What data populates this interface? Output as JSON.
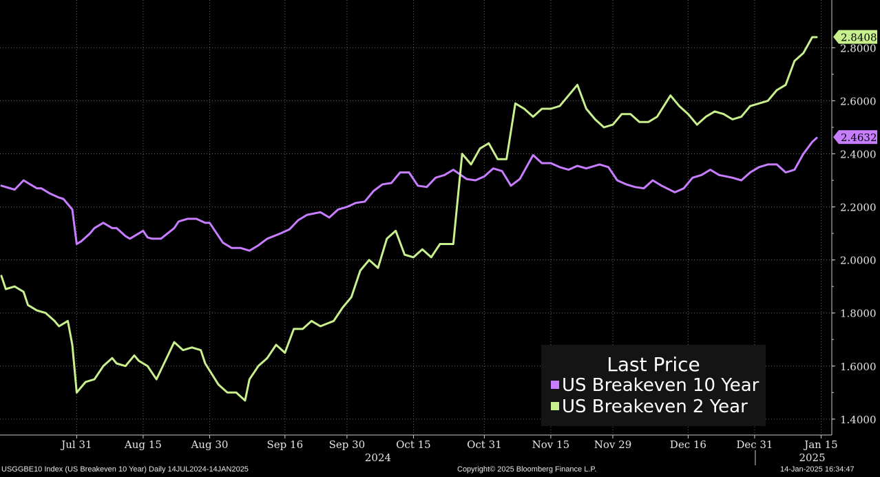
{
  "footer": {
    "left": "USGGBE10 Index (US Breakeven 10 Year)  Daily 14JUL2024-14JAN2025",
    "center": "Copyright© 2025 Bloomberg Finance L.P.",
    "right": "14-Jan-2025 16:34:47"
  },
  "legend": {
    "title": "Last Price",
    "items": [
      {
        "label": "US Breakeven 10 Year",
        "color": "#c77dff"
      },
      {
        "label": "US Breakeven 2 Year",
        "color": "#c8f08c"
      }
    ]
  },
  "colors": {
    "background": "#000000",
    "grid": "#6a6a6a",
    "axis": "#cfcfcf"
  },
  "chart_data": {
    "type": "line",
    "title": "",
    "x_range": [
      "2024-07-14",
      "2025-01-14"
    ],
    "y_range": [
      1.34,
      2.98
    ],
    "yticks": [
      "1.4000",
      "1.6000",
      "1.8000",
      "2.0000",
      "2.2000",
      "2.4000",
      "2.6000",
      "2.8000"
    ],
    "xticks": [
      {
        "date": "2024-07-31",
        "label": "Jul 31"
      },
      {
        "date": "2024-08-15",
        "label": "Aug 15"
      },
      {
        "date": "2024-08-30",
        "label": "Aug 30"
      },
      {
        "date": "2024-09-16",
        "label": "Sep 16"
      },
      {
        "date": "2024-09-30",
        "label": "Sep 30"
      },
      {
        "date": "2024-10-15",
        "label": "Oct 15"
      },
      {
        "date": "2024-10-31",
        "label": "Oct 31"
      },
      {
        "date": "2024-11-15",
        "label": "Nov 15"
      },
      {
        "date": "2024-11-29",
        "label": "Nov 29"
      },
      {
        "date": "2024-12-16",
        "label": "Dec 16"
      },
      {
        "date": "2024-12-31",
        "label": "Dec 31"
      },
      {
        "date": "2025-01-15",
        "label": "Jan 15"
      }
    ],
    "year_labels": [
      {
        "date": "2024-10-07",
        "label": "2024"
      },
      {
        "date": "2025-01-13",
        "label": "2025"
      }
    ],
    "year_divider": "2024-12-31",
    "grid": true,
    "legend_position": "bottom-right",
    "series": [
      {
        "name": "US Breakeven 10 Year",
        "color": "#c77dff",
        "last_value": "2.4632",
        "x": [
          "2024-07-14",
          "2024-07-17",
          "2024-07-19",
          "2024-07-20",
          "2024-07-22",
          "2024-07-23",
          "2024-07-25",
          "2024-07-27",
          "2024-07-28",
          "2024-07-30",
          "2024-07-31",
          "2024-08-01",
          "2024-08-03",
          "2024-08-04",
          "2024-08-06",
          "2024-08-08",
          "2024-08-09",
          "2024-08-11",
          "2024-08-12",
          "2024-08-15",
          "2024-08-16",
          "2024-08-17",
          "2024-08-19",
          "2024-08-22",
          "2024-08-23",
          "2024-08-25",
          "2024-08-27",
          "2024-08-29",
          "2024-08-30",
          "2024-09-02",
          "2024-09-04",
          "2024-09-06",
          "2024-09-08",
          "2024-09-10",
          "2024-09-12",
          "2024-09-15",
          "2024-09-17",
          "2024-09-19",
          "2024-09-21",
          "2024-09-24",
          "2024-09-26",
          "2024-09-28",
          "2024-09-30",
          "2024-10-02",
          "2024-10-04",
          "2024-10-06",
          "2024-10-08",
          "2024-10-10",
          "2024-10-12",
          "2024-10-14",
          "2024-10-16",
          "2024-10-18",
          "2024-10-20",
          "2024-10-22",
          "2024-10-24",
          "2024-10-27",
          "2024-10-29",
          "2024-10-31",
          "2024-11-02",
          "2024-11-04",
          "2024-11-06",
          "2024-11-08",
          "2024-11-11",
          "2024-11-13",
          "2024-11-15",
          "2024-11-17",
          "2024-11-19",
          "2024-11-21",
          "2024-11-23",
          "2024-11-26",
          "2024-11-28",
          "2024-11-30",
          "2024-12-02",
          "2024-12-04",
          "2024-12-06",
          "2024-12-08",
          "2024-12-10",
          "2024-12-13",
          "2024-12-15",
          "2024-12-17",
          "2024-12-19",
          "2024-12-21",
          "2024-12-23",
          "2024-12-26",
          "2024-12-28",
          "2024-12-30",
          "2025-01-01",
          "2025-01-03",
          "2025-01-05",
          "2025-01-07",
          "2025-01-09",
          "2025-01-11",
          "2025-01-13",
          "2025-01-14"
        ],
        "values": [
          2.28,
          2.265,
          2.3,
          2.29,
          2.27,
          2.27,
          2.25,
          2.235,
          2.23,
          2.19,
          2.06,
          2.07,
          2.1,
          2.12,
          2.14,
          2.12,
          2.12,
          2.09,
          2.08,
          2.11,
          2.085,
          2.08,
          2.08,
          2.12,
          2.145,
          2.155,
          2.155,
          2.14,
          2.14,
          2.065,
          2.045,
          2.045,
          2.035,
          2.055,
          2.08,
          2.1,
          2.115,
          2.15,
          2.17,
          2.18,
          2.16,
          2.19,
          2.2,
          2.215,
          2.22,
          2.26,
          2.285,
          2.29,
          2.33,
          2.33,
          2.28,
          2.275,
          2.31,
          2.32,
          2.34,
          2.305,
          2.3,
          2.315,
          2.345,
          2.335,
          2.28,
          2.305,
          2.395,
          2.365,
          2.365,
          2.35,
          2.34,
          2.355,
          2.345,
          2.36,
          2.35,
          2.3,
          2.285,
          2.275,
          2.27,
          2.3,
          2.28,
          2.255,
          2.27,
          2.31,
          2.32,
          2.34,
          2.32,
          2.31,
          2.3,
          2.33,
          2.35,
          2.36,
          2.36,
          2.33,
          2.34,
          2.4,
          2.445,
          2.46
        ]
      },
      {
        "name": "US Breakeven 2 Year",
        "color": "#c8f08c",
        "last_value": "2.8408",
        "x": [
          "2024-07-14",
          "2024-07-15",
          "2024-07-17",
          "2024-07-19",
          "2024-07-20",
          "2024-07-22",
          "2024-07-24",
          "2024-07-26",
          "2024-07-27",
          "2024-07-29",
          "2024-07-30",
          "2024-07-31",
          "2024-08-02",
          "2024-08-04",
          "2024-08-06",
          "2024-08-08",
          "2024-08-09",
          "2024-08-11",
          "2024-08-13",
          "2024-08-14",
          "2024-08-16",
          "2024-08-18",
          "2024-08-20",
          "2024-08-22",
          "2024-08-24",
          "2024-08-26",
          "2024-08-28",
          "2024-08-29",
          "2024-09-01",
          "2024-09-03",
          "2024-09-05",
          "2024-09-07",
          "2024-09-08",
          "2024-09-10",
          "2024-09-12",
          "2024-09-14",
          "2024-09-16",
          "2024-09-18",
          "2024-09-20",
          "2024-09-22",
          "2024-09-24",
          "2024-09-27",
          "2024-09-29",
          "2024-10-01",
          "2024-10-03",
          "2024-10-05",
          "2024-10-07",
          "2024-10-09",
          "2024-10-11",
          "2024-10-13",
          "2024-10-15",
          "2024-10-17",
          "2024-10-19",
          "2024-10-21",
          "2024-10-23",
          "2024-10-24",
          "2024-10-26",
          "2024-10-28",
          "2024-10-30",
          "2024-11-01",
          "2024-11-03",
          "2024-11-05",
          "2024-11-07",
          "2024-11-09",
          "2024-11-11",
          "2024-11-13",
          "2024-11-15",
          "2024-11-17",
          "2024-11-19",
          "2024-11-21",
          "2024-11-23",
          "2024-11-25",
          "2024-11-27",
          "2024-11-29",
          "2024-12-01",
          "2024-12-03",
          "2024-12-05",
          "2024-12-07",
          "2024-12-09",
          "2024-12-12",
          "2024-12-14",
          "2024-12-16",
          "2024-12-18",
          "2024-12-20",
          "2024-12-22",
          "2024-12-24",
          "2024-12-26",
          "2024-12-28",
          "2024-12-30",
          "2025-01-01",
          "2025-01-03",
          "2025-01-05",
          "2025-01-07",
          "2025-01-09",
          "2025-01-11",
          "2025-01-13",
          "2025-01-14"
        ],
        "values": [
          1.94,
          1.89,
          1.9,
          1.88,
          1.83,
          1.81,
          1.8,
          1.77,
          1.75,
          1.77,
          1.68,
          1.5,
          1.54,
          1.55,
          1.6,
          1.63,
          1.61,
          1.6,
          1.64,
          1.62,
          1.6,
          1.55,
          1.62,
          1.69,
          1.66,
          1.67,
          1.66,
          1.61,
          1.53,
          1.5,
          1.5,
          1.47,
          1.55,
          1.6,
          1.63,
          1.68,
          1.65,
          1.74,
          1.74,
          1.77,
          1.75,
          1.77,
          1.82,
          1.86,
          1.96,
          2.0,
          1.97,
          2.08,
          2.11,
          2.02,
          2.01,
          2.04,
          2.01,
          2.06,
          2.06,
          2.06,
          2.4,
          2.36,
          2.42,
          2.44,
          2.38,
          2.38,
          2.59,
          2.57,
          2.54,
          2.57,
          2.57,
          2.58,
          2.62,
          2.66,
          2.57,
          2.53,
          2.5,
          2.51,
          2.55,
          2.55,
          2.52,
          2.52,
          2.54,
          2.62,
          2.58,
          2.55,
          2.51,
          2.54,
          2.56,
          2.55,
          2.53,
          2.54,
          2.58,
          2.59,
          2.6,
          2.64,
          2.66,
          2.75,
          2.78,
          2.84,
          2.84
        ]
      }
    ]
  }
}
